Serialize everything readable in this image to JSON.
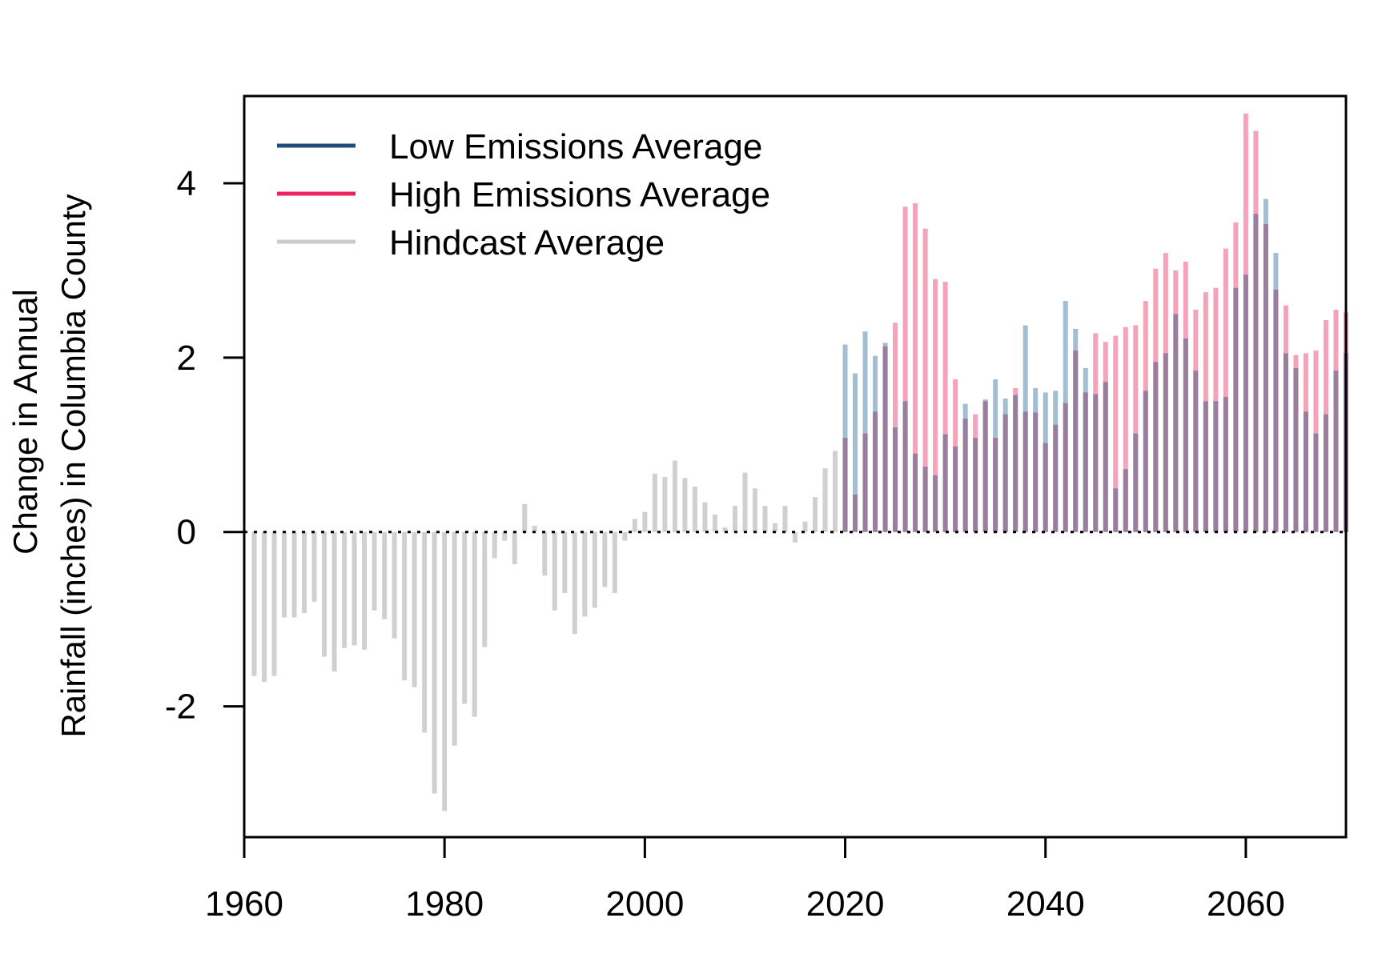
{
  "chart_data": {
    "type": "bar",
    "ylabel_lines": [
      "Change in Annual",
      "Rainfall (inches) in Columbia County"
    ],
    "xlim": [
      1960,
      2070
    ],
    "ylim": [
      -3.5,
      5.0
    ],
    "x_ticks": [
      1960,
      1980,
      2000,
      2020,
      2040,
      2060
    ],
    "x_tick_labels": [
      "1960",
      "1980",
      "2000",
      "2020",
      "2040",
      "2060"
    ],
    "y_ticks": [
      -2,
      0,
      2,
      4
    ],
    "y_tick_labels": [
      "-2",
      "0",
      "2",
      "4"
    ],
    "grid": false,
    "reference_line": 0,
    "legend": {
      "placement": "top-left",
      "entries": [
        "Low Emissions Average",
        "High Emissions Average",
        "Hindcast Average"
      ]
    },
    "colors": {
      "low": "#1f4e79",
      "high": "#e8255f",
      "hindcast": "#cccccc",
      "low_bar": "#a3bdd3",
      "high_bar": "#f5a3ba",
      "overlap_bar": "#9a7e9e",
      "hindcast_bar": "#d0d0d0"
    },
    "series": [
      {
        "name": "Hindcast Average",
        "x": [
          1961,
          1962,
          1963,
          1964,
          1965,
          1966,
          1967,
          1968,
          1969,
          1970,
          1971,
          1972,
          1973,
          1974,
          1975,
          1976,
          1977,
          1978,
          1979,
          1980,
          1981,
          1982,
          1983,
          1984,
          1985,
          1986,
          1987,
          1988,
          1989,
          1990,
          1991,
          1992,
          1993,
          1994,
          1995,
          1996,
          1997,
          1998,
          1999,
          2000,
          2001,
          2002,
          2003,
          2004,
          2005,
          2006,
          2007,
          2008,
          2009,
          2010,
          2011,
          2012,
          2013,
          2014,
          2015,
          2016,
          2017,
          2018,
          2019
        ],
        "values": [
          -1.65,
          -1.72,
          -1.65,
          -0.98,
          -0.98,
          -0.93,
          -0.8,
          -1.43,
          -1.6,
          -1.33,
          -1.3,
          -1.35,
          -0.9,
          -1.0,
          -1.22,
          -1.7,
          -1.78,
          -2.3,
          -3.0,
          -3.2,
          -2.45,
          -1.97,
          -2.12,
          -1.32,
          -0.3,
          -0.1,
          -0.37,
          0.32,
          0.07,
          -0.5,
          -0.9,
          -0.7,
          -1.17,
          -0.97,
          -0.87,
          -0.63,
          -0.7,
          -0.1,
          0.15,
          0.23,
          0.67,
          0.63,
          0.82,
          0.62,
          0.52,
          0.34,
          0.2,
          0.05,
          0.3,
          0.68,
          0.5,
          0.3,
          0.1,
          0.3,
          -0.12,
          0.12,
          0.4,
          0.73,
          0.93
        ]
      },
      {
        "name": "Low Emissions Average",
        "x": [
          2020,
          2021,
          2022,
          2023,
          2024,
          2025,
          2026,
          2027,
          2028,
          2029,
          2030,
          2031,
          2032,
          2033,
          2034,
          2035,
          2036,
          2037,
          2038,
          2039,
          2040,
          2041,
          2042,
          2043,
          2044,
          2045,
          2046,
          2047,
          2048,
          2049,
          2050,
          2051,
          2052,
          2053,
          2054,
          2055,
          2056,
          2057,
          2058,
          2059,
          2060,
          2061,
          2062,
          2063,
          2064,
          2065,
          2066,
          2067,
          2068,
          2069,
          2070
        ],
        "values": [
          2.15,
          1.82,
          2.3,
          2.02,
          2.17,
          1.2,
          1.5,
          0.9,
          0.75,
          0.65,
          1.12,
          0.98,
          1.47,
          1.08,
          1.52,
          1.75,
          1.53,
          1.57,
          2.37,
          1.65,
          1.6,
          1.62,
          2.65,
          2.33,
          1.88,
          1.58,
          1.72,
          0.5,
          0.72,
          1.13,
          1.62,
          1.95,
          2.05,
          2.5,
          2.22,
          1.85,
          1.5,
          1.5,
          1.55,
          2.8,
          2.95,
          3.65,
          3.82,
          3.2,
          2.05,
          1.88,
          1.38,
          1.13,
          1.35,
          1.85,
          2.05
        ]
      },
      {
        "name": "High Emissions Average",
        "x": [
          2020,
          2021,
          2022,
          2023,
          2024,
          2025,
          2026,
          2027,
          2028,
          2029,
          2030,
          2031,
          2032,
          2033,
          2034,
          2035,
          2036,
          2037,
          2038,
          2039,
          2040,
          2041,
          2042,
          2043,
          2044,
          2045,
          2046,
          2047,
          2048,
          2049,
          2050,
          2051,
          2052,
          2053,
          2054,
          2055,
          2056,
          2057,
          2058,
          2059,
          2060,
          2061,
          2062,
          2063,
          2064,
          2065,
          2066,
          2067,
          2068,
          2069,
          2070
        ],
        "values": [
          1.08,
          0.43,
          1.13,
          1.38,
          2.13,
          2.4,
          3.73,
          3.77,
          3.48,
          2.9,
          2.87,
          1.75,
          1.3,
          1.35,
          1.5,
          1.08,
          1.35,
          1.65,
          1.38,
          1.37,
          1.02,
          1.23,
          1.48,
          2.08,
          1.6,
          2.28,
          2.18,
          2.25,
          2.35,
          2.37,
          2.65,
          3.02,
          3.2,
          3.0,
          3.1,
          2.55,
          2.75,
          2.8,
          3.25,
          3.55,
          4.8,
          4.6,
          3.53,
          2.78,
          2.6,
          2.03,
          2.05,
          2.08,
          2.43,
          2.55,
          2.52
        ]
      }
    ]
  }
}
